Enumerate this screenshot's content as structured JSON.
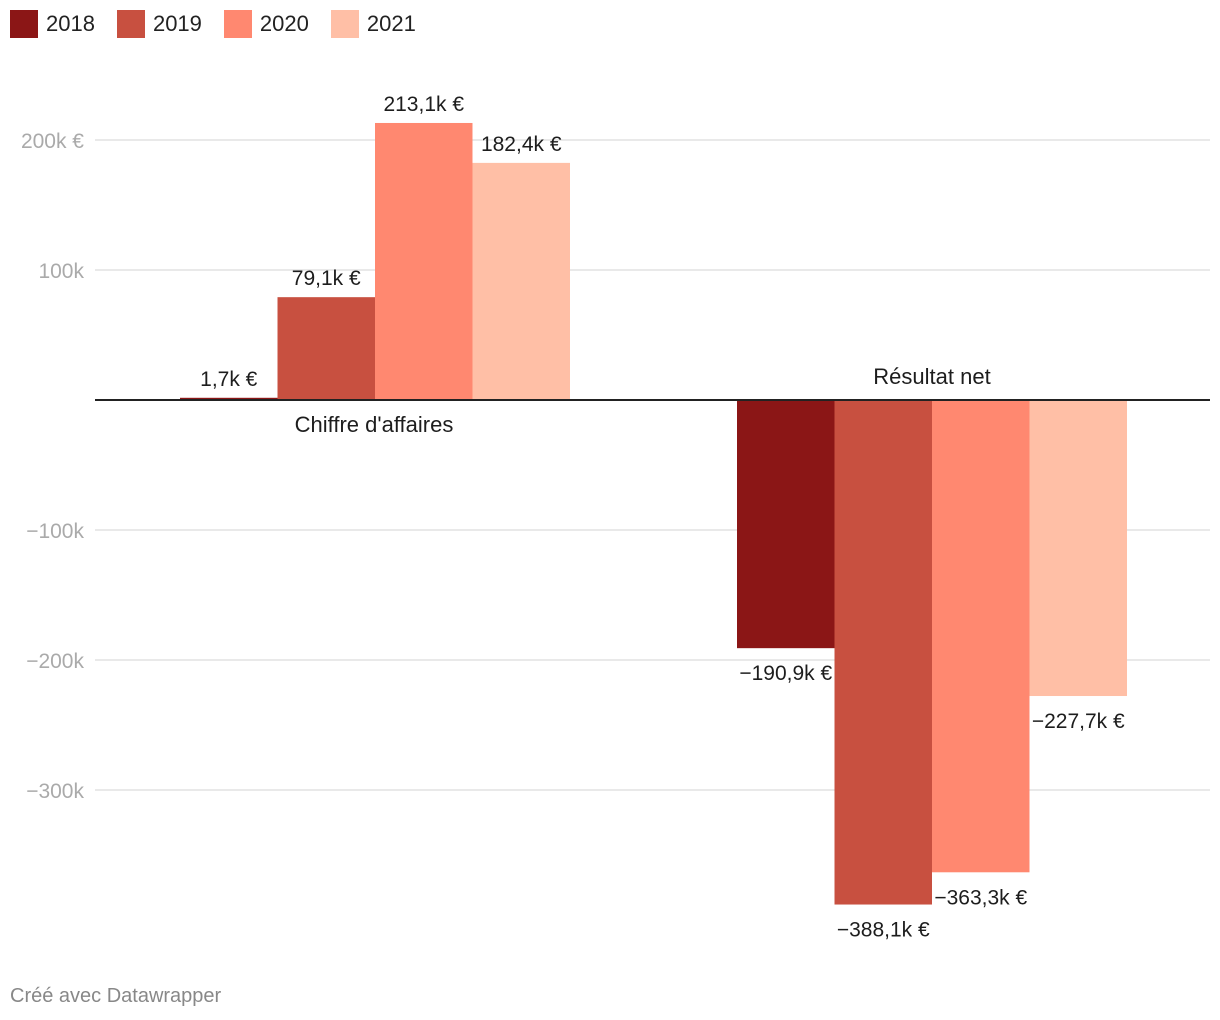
{
  "chart_data": {
    "type": "bar",
    "categories": [
      "Chiffre d'affaires",
      "Résultat net"
    ],
    "series": [
      {
        "name": "2018",
        "color": "#8b1616",
        "values": [
          1.7,
          -190.9
        ],
        "labels": [
          "1,7k €",
          "−190,9k €"
        ]
      },
      {
        "name": "2019",
        "color": "#c85040",
        "values": [
          79.1,
          -388.1
        ],
        "labels": [
          "79,1k €",
          "−388,1k €"
        ]
      },
      {
        "name": "2020",
        "color": "#ff8870",
        "values": [
          213.1,
          -363.3
        ],
        "labels": [
          "213,1k €",
          "−363,3k €"
        ]
      },
      {
        "name": "2021",
        "color": "#ffbfa6",
        "values": [
          182.4,
          -227.7
        ],
        "labels": [
          "182,4k €",
          "−227,7k €"
        ]
      }
    ],
    "yticks": [
      {
        "value": 200,
        "label": "200k €"
      },
      {
        "value": 100,
        "label": "100k"
      },
      {
        "value": -100,
        "label": "−100k"
      },
      {
        "value": -200,
        "label": "−200k"
      },
      {
        "value": -300,
        "label": "−300k"
      }
    ],
    "ylim": [
      -400,
      260
    ],
    "unit": "k €"
  },
  "footer": "Créé avec Datawrapper"
}
